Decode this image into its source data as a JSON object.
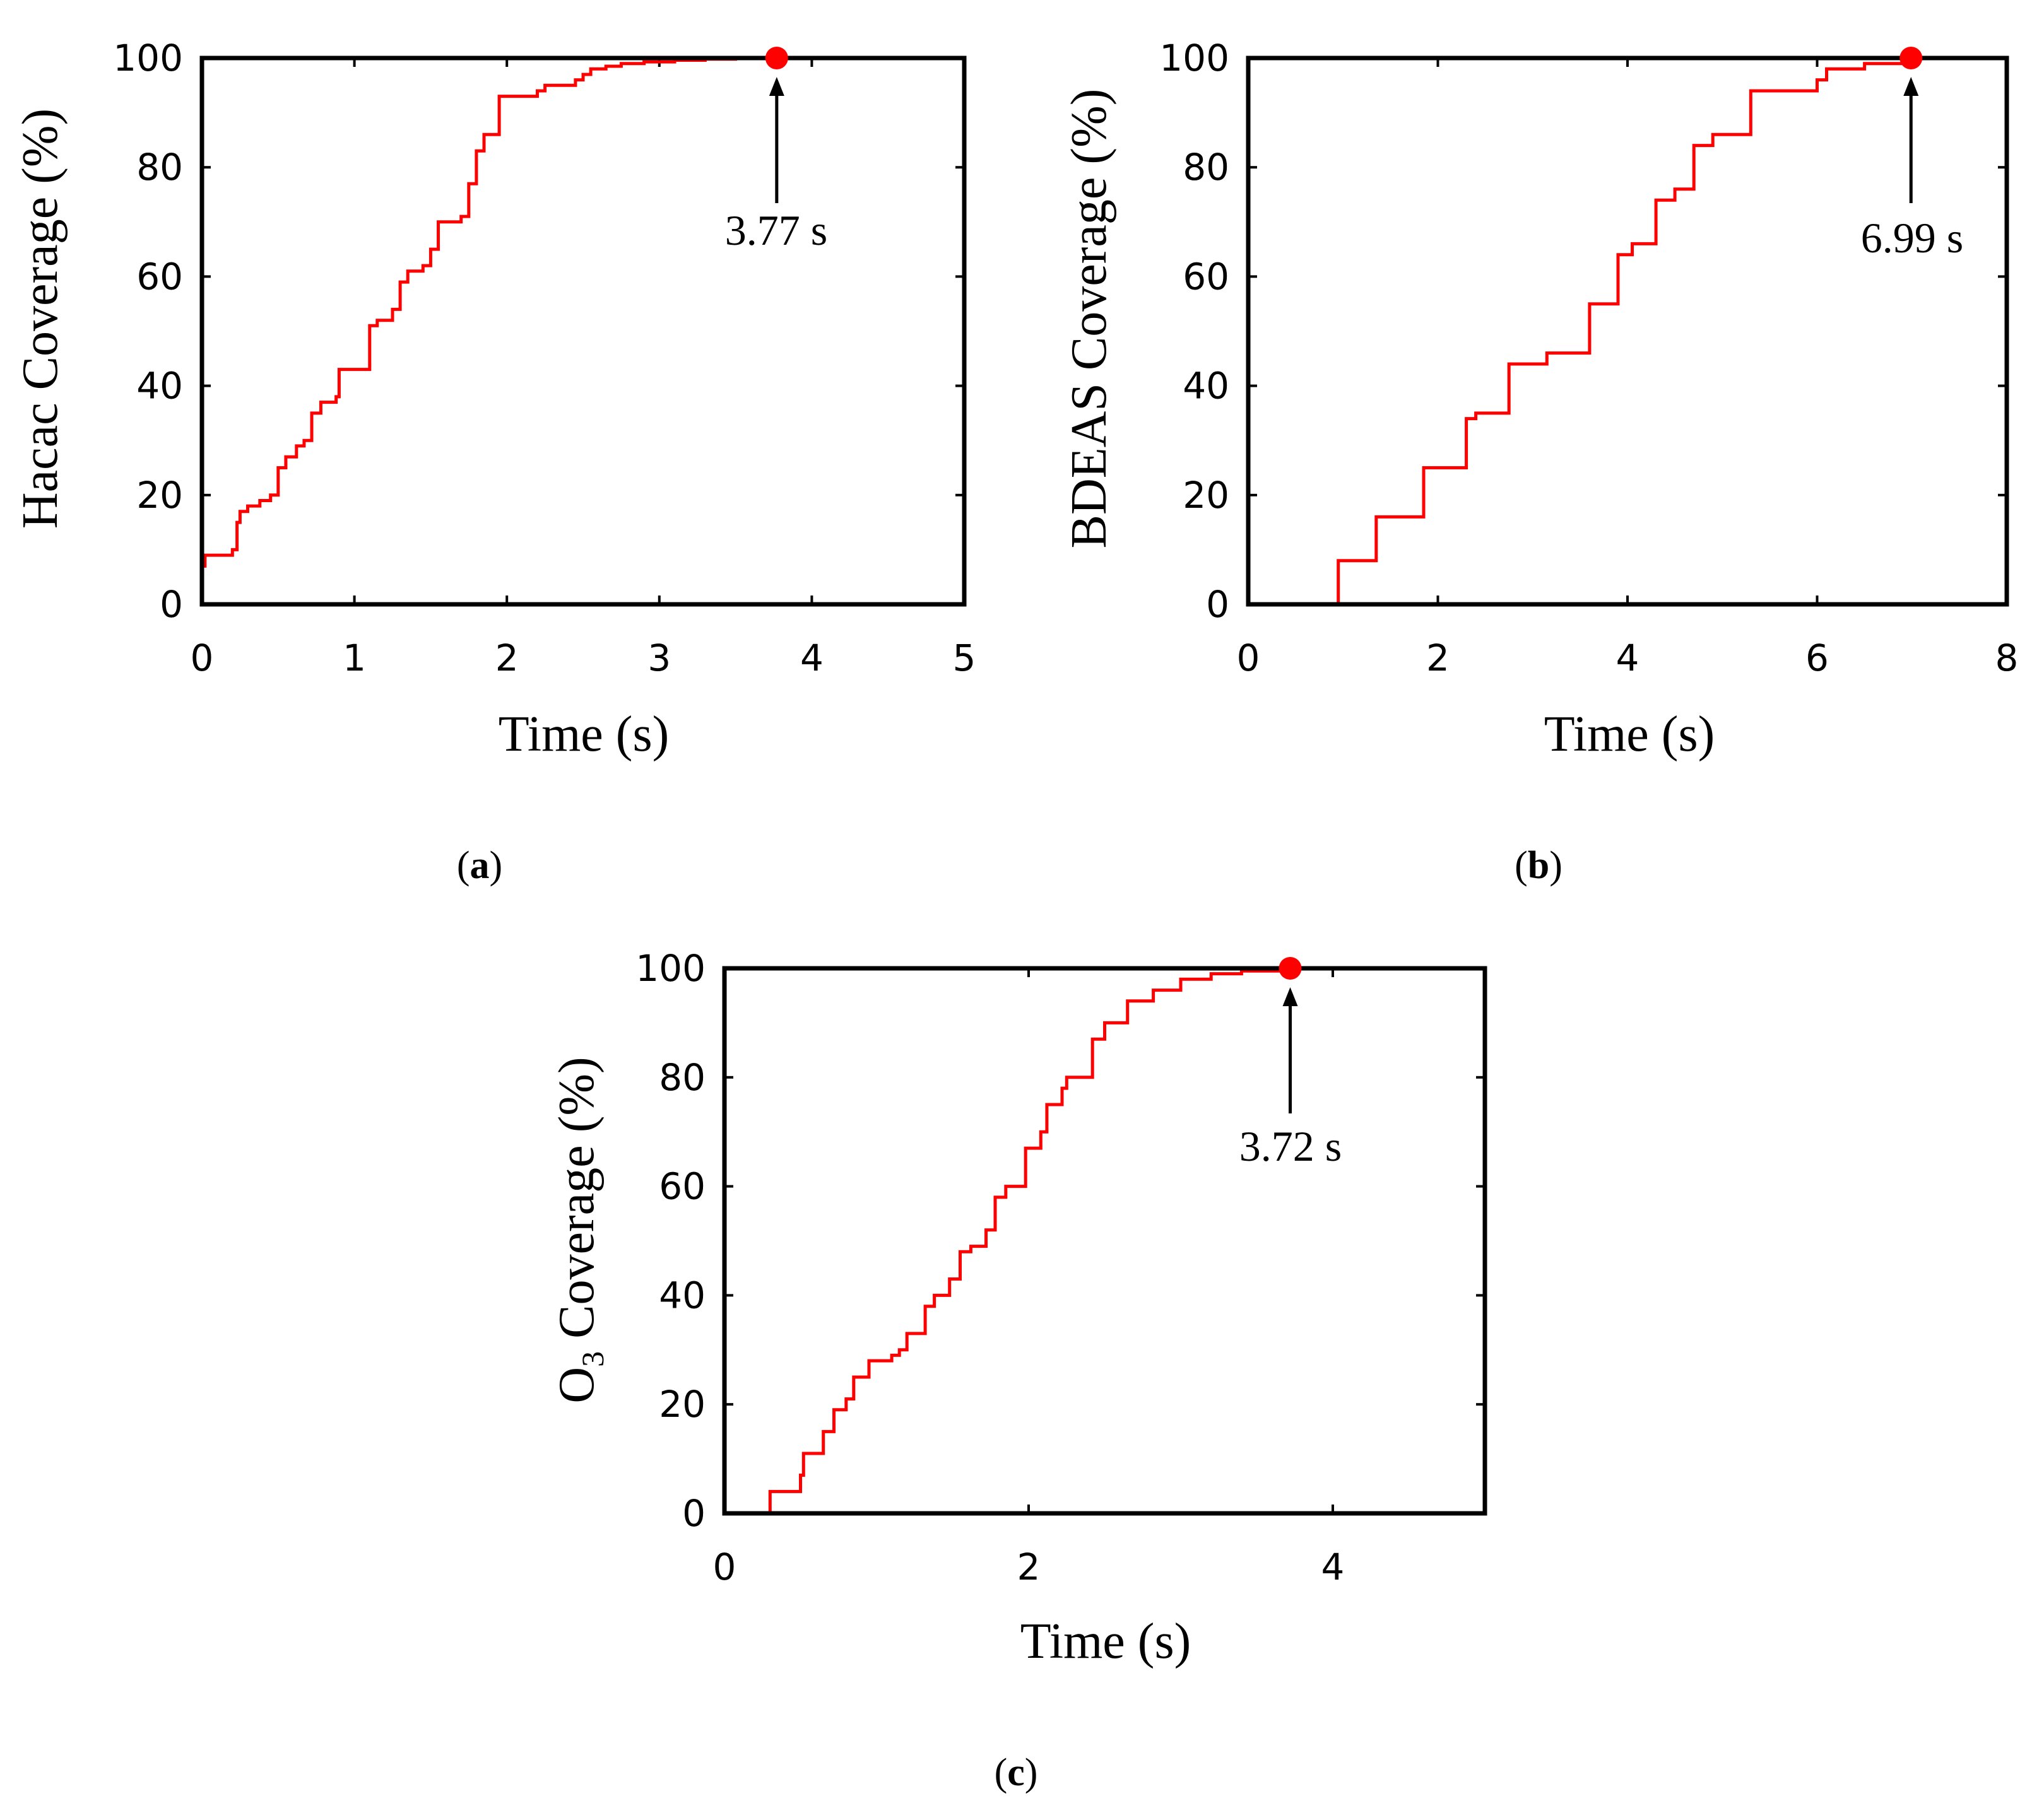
{
  "chart_data": [
    {
      "id": "a",
      "type": "line",
      "panel_label": "a",
      "xlabel": "Time (s)",
      "ylabel": "Hacac Coverage (%)",
      "xlim": [
        0,
        5
      ],
      "ylim": [
        0,
        100
      ],
      "xticks": [
        0,
        1,
        2,
        3,
        4,
        5
      ],
      "yticks": [
        0,
        20,
        40,
        60,
        80,
        100
      ],
      "color": "#ff0000",
      "series": [
        {
          "name": "Hacac",
          "step": true,
          "x": [
            0,
            0.02,
            0.2,
            0.23,
            0.25,
            0.3,
            0.38,
            0.45,
            0.5,
            0.55,
            0.62,
            0.67,
            0.72,
            0.78,
            0.88,
            0.9,
            1.1,
            1.15,
            1.25,
            1.3,
            1.35,
            1.45,
            1.5,
            1.55,
            1.7,
            1.75,
            1.8,
            1.85,
            1.95,
            2.2,
            2.25,
            2.45,
            2.5,
            2.55,
            2.65,
            2.75,
            2.9,
            3.1,
            3.3,
            3.5,
            3.77,
            5.0
          ],
          "y": [
            7,
            9,
            10,
            15,
            17,
            18,
            19,
            20,
            25,
            27,
            29,
            30,
            35,
            37,
            38,
            43,
            51,
            52,
            54,
            59,
            61,
            62,
            65,
            70,
            71,
            77,
            83,
            86,
            93,
            94,
            95,
            96,
            97,
            98,
            98.5,
            99,
            99.3,
            99.6,
            99.8,
            99.9,
            100,
            100
          ]
        }
      ],
      "marker": {
        "x": 3.77,
        "y": 100
      },
      "annotation": "3.77 s"
    },
    {
      "id": "b",
      "type": "line",
      "panel_label": "b",
      "xlabel": "Time (s)",
      "ylabel": "BDEAS Coverage (%)",
      "xlim": [
        0,
        8
      ],
      "ylim": [
        0,
        100
      ],
      "xticks": [
        0,
        2,
        4,
        6,
        8
      ],
      "yticks": [
        0,
        20,
        40,
        60,
        80,
        100
      ],
      "color": "#ff0000",
      "series": [
        {
          "name": "BDEAS",
          "step": true,
          "x": [
            0,
            0.95,
            1.35,
            1.85,
            2.3,
            2.4,
            2.75,
            3.15,
            3.6,
            3.9,
            4.05,
            4.3,
            4.5,
            4.7,
            4.9,
            5.3,
            6.0,
            6.1,
            6.5,
            6.99,
            8.0
          ],
          "y": [
            0,
            8,
            16,
            25,
            34,
            35,
            44,
            46,
            55,
            64,
            66,
            74,
            76,
            84,
            86,
            94,
            96,
            98,
            99,
            100,
            100
          ]
        }
      ],
      "marker": {
        "x": 6.99,
        "y": 100
      },
      "annotation": "6.99 s"
    },
    {
      "id": "c",
      "type": "line",
      "panel_label": "c",
      "xlabel": "Time (s)",
      "ylabel_main": "O",
      "ylabel_sub": "3",
      "ylabel_rest": " Coverage (%)",
      "xlim": [
        0,
        5
      ],
      "ylim": [
        0,
        100
      ],
      "xticks": [
        0,
        2,
        4
      ],
      "yticks": [
        0,
        20,
        40,
        60,
        80,
        100
      ],
      "color": "#ff0000",
      "series": [
        {
          "name": "O3",
          "step": true,
          "x": [
            0,
            0.3,
            0.5,
            0.52,
            0.65,
            0.72,
            0.8,
            0.85,
            0.95,
            1.1,
            1.15,
            1.2,
            1.32,
            1.38,
            1.48,
            1.55,
            1.62,
            1.72,
            1.78,
            1.85,
            1.98,
            2.08,
            2.12,
            2.22,
            2.25,
            2.42,
            2.5,
            2.65,
            2.82,
            3.0,
            3.2,
            3.4,
            3.72,
            5.0
          ],
          "y": [
            0,
            4,
            7,
            11,
            15,
            19,
            21,
            25,
            28,
            29,
            30,
            33,
            38,
            40,
            43,
            48,
            49,
            52,
            58,
            60,
            67,
            70,
            75,
            78,
            80,
            87,
            90,
            94,
            96,
            98,
            99,
            99.5,
            100,
            100
          ]
        }
      ],
      "marker": {
        "x": 3.72,
        "y": 100
      },
      "annotation": "3.72 s"
    }
  ]
}
